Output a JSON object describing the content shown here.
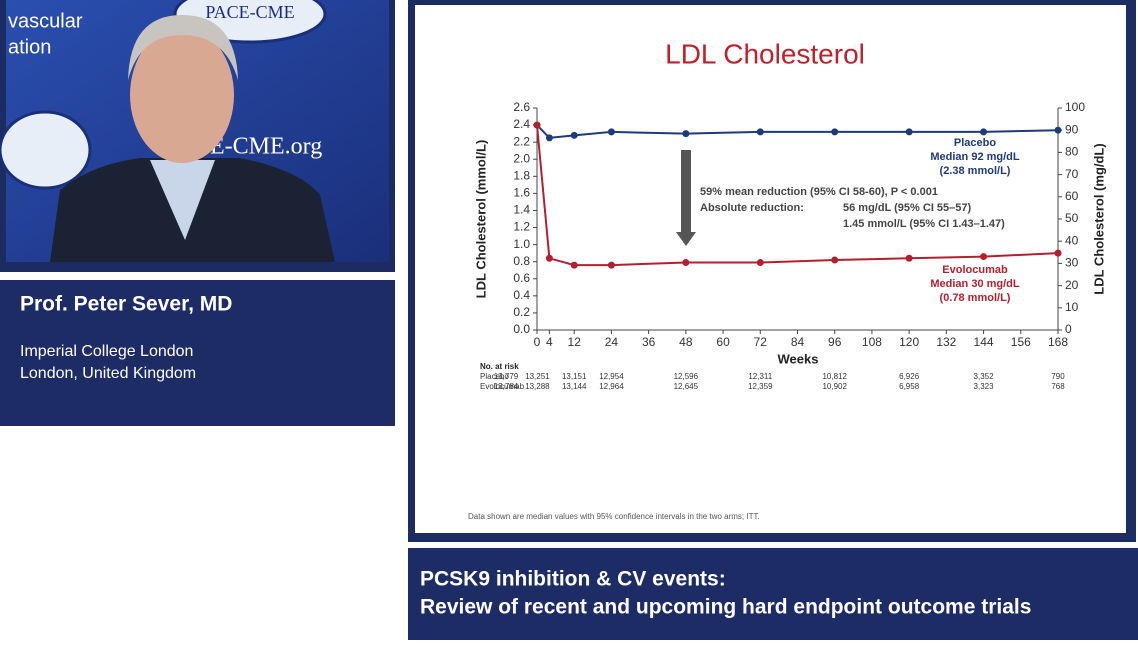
{
  "video_texts": [
    "vascular",
    "ation",
    "PACE-CME",
    "E-CME.org"
  ],
  "speaker": {
    "name": "Prof. Peter Sever, MD",
    "affiliation": [
      "Imperial College London",
      "London, United Kingdom"
    ]
  },
  "banner": [
    "PCSK9 inhibition & CV events:",
    "Review of recent and upcoming hard endpoint outcome trials"
  ],
  "chart_data": {
    "type": "line",
    "title": "LDL Cholesterol",
    "xlabel": "Weeks",
    "ylabel": "LDL Cholesterol (mmol/L)",
    "y2label": "LDL Cholesterol (mg/dL)",
    "x": [
      0,
      4,
      12,
      24,
      48,
      72,
      96,
      120,
      144,
      168
    ],
    "xlim": [
      0,
      168
    ],
    "xticks": [
      0,
      4,
      12,
      24,
      36,
      48,
      60,
      72,
      84,
      96,
      108,
      120,
      132,
      144,
      156,
      168
    ],
    "ylim": [
      0,
      2.6
    ],
    "yticks": [
      {
        "value": 0,
        "label": "0.0"
      },
      0.2,
      0.4,
      0.6,
      0.8,
      {
        "value": 1,
        "label": "1.0"
      },
      1.2,
      1.4,
      1.6,
      1.8,
      {
        "value": 2,
        "label": "2.0"
      },
      2.2,
      2.4,
      2.6
    ],
    "y2lim": [
      0,
      100
    ],
    "y2ticks": [
      0,
      10,
      20,
      30,
      40,
      50,
      60,
      70,
      80,
      90,
      100
    ],
    "series": [
      {
        "name": "Placebo",
        "color": "#1f3a7a",
        "values": [
          2.4,
          2.25,
          2.28,
          2.32,
          2.3,
          2.32,
          2.32,
          2.32,
          2.32,
          2.34
        ],
        "notes": [
          "Median 92 mg/dL",
          "(2.38 mmol/L)"
        ]
      },
      {
        "name": "Evolocumab",
        "color": "#b22030",
        "values": [
          2.4,
          0.84,
          0.76,
          0.76,
          0.79,
          0.79,
          0.82,
          0.84,
          0.86,
          0.9
        ],
        "notes": [
          "Median 30 mg/dL",
          "(0.78 mmol/L)"
        ]
      }
    ],
    "annotations": [
      "59% mean reduction (95% CI 58-60), P < 0.001",
      "Absolute reduction:",
      "56 mg/dL (95% CI 55–57)",
      "1.45 mmol/L (95% CI 1.43–1.47)"
    ],
    "at_risk": {
      "label": "No. at risk",
      "rows": [
        {
          "name": "Placebo",
          "counts": [
            "13,779",
            "13,251",
            "13,151",
            "12,954",
            "12,596",
            "12,311",
            "10,812",
            "6,926",
            "3,352",
            "790"
          ]
        },
        {
          "name": "Evolocumab",
          "counts": [
            "13,784",
            "13,288",
            "13,144",
            "12,964",
            "12,645",
            "12,359",
            "10,902",
            "6,958",
            "3,323",
            "768"
          ]
        }
      ]
    },
    "footnote": "Data shown are median values with 95% confidence intervals in the two arms; ITT."
  }
}
